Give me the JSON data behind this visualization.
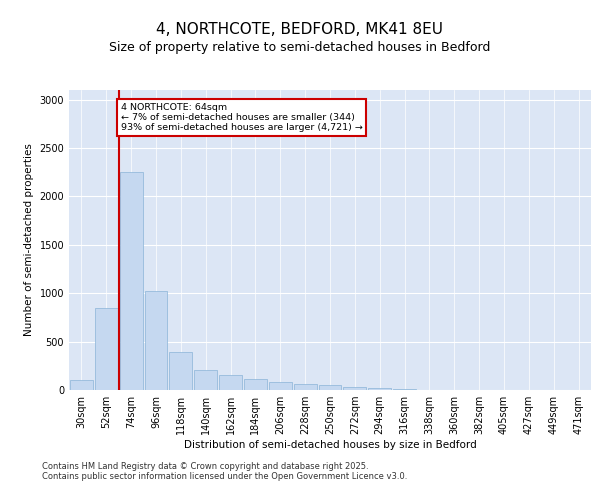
{
  "title1": "4, NORTHCOTE, BEDFORD, MK41 8EU",
  "title2": "Size of property relative to semi-detached houses in Bedford",
  "xlabel": "Distribution of semi-detached houses by size in Bedford",
  "ylabel": "Number of semi-detached properties",
  "categories": [
    "30sqm",
    "52sqm",
    "74sqm",
    "96sqm",
    "118sqm",
    "140sqm",
    "162sqm",
    "184sqm",
    "206sqm",
    "228sqm",
    "250sqm",
    "272sqm",
    "294sqm",
    "316sqm",
    "338sqm",
    "360sqm",
    "382sqm",
    "405sqm",
    "427sqm",
    "449sqm",
    "471sqm"
  ],
  "values": [
    100,
    850,
    2250,
    1020,
    390,
    210,
    155,
    110,
    80,
    60,
    50,
    35,
    20,
    10,
    5,
    4,
    2,
    1,
    1,
    0,
    0
  ],
  "bar_color": "#c5d8f0",
  "bar_edge_color": "#8ab4d8",
  "vline_color": "#cc0000",
  "vline_x": 1.5,
  "annotation_text": "4 NORTHCOTE: 64sqm\n← 7% of semi-detached houses are smaller (344)\n93% of semi-detached houses are larger (4,721) →",
  "annotation_box_color": "#ffffff",
  "annotation_box_edge": "#cc0000",
  "ylim": [
    0,
    3100
  ],
  "yticks": [
    0,
    500,
    1000,
    1500,
    2000,
    2500,
    3000
  ],
  "background_color": "#dce6f5",
  "footer_text": "Contains HM Land Registry data © Crown copyright and database right 2025.\nContains public sector information licensed under the Open Government Licence v3.0.",
  "title1_fontsize": 11,
  "title2_fontsize": 9,
  "axis_fontsize": 7.5,
  "tick_fontsize": 7,
  "footer_fontsize": 6
}
